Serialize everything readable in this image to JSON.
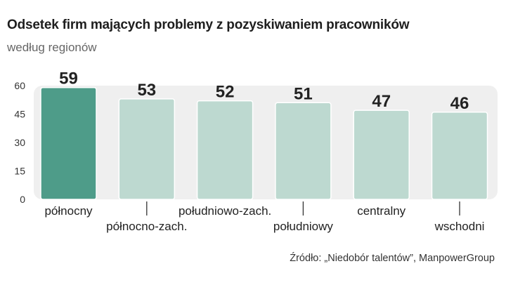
{
  "title": "Odsetek firm mających problemy z pozyskiwaniem pracowników",
  "subtitle": "według regionów",
  "source": "Źródło: „Niedobór talentów”, ManpowerGroup",
  "colors": {
    "highlight": "#4e9c89",
    "bar": "#bdd9d0",
    "plot_bg": "#efefef"
  },
  "chart_data": {
    "type": "bar",
    "title": "Odsetek firm mających problemy z pozyskiwaniem pracowników",
    "subtitle": "według regionów",
    "categories": [
      "północny",
      "północno-zach.",
      "południowo-zach.",
      "południowy",
      "centralny",
      "wschodni"
    ],
    "values": [
      59,
      53,
      52,
      51,
      47,
      46
    ],
    "data_labels": [
      "59",
      "53",
      "52",
      "51",
      "47",
      "46"
    ],
    "highlight_index": 0,
    "yticks": [
      0,
      15,
      30,
      45,
      60
    ],
    "ylim": [
      0,
      60
    ],
    "xlabel": "",
    "ylabel": "",
    "grid": false,
    "legend": "none"
  }
}
